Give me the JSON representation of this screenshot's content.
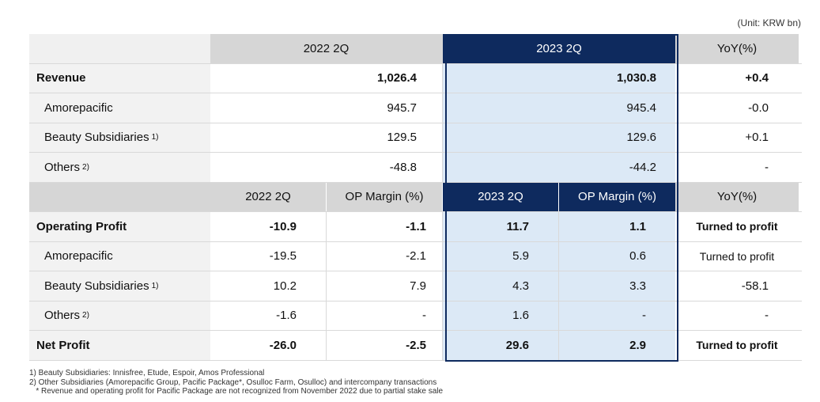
{
  "unit": "(Unit: KRW bn)",
  "revenue_header": {
    "period1": "2022 2Q",
    "period2": "2023 2Q",
    "yoy": "YoY(%)"
  },
  "revenue_rows": [
    {
      "label": "Revenue",
      "sup": "",
      "v2022": "1,026.4",
      "v2023": "1,030.8",
      "yoy": "+0.4",
      "bold": true
    },
    {
      "label": "Amorepacific",
      "sup": "",
      "v2022": "945.7",
      "v2023": "945.4",
      "yoy": "-0.0",
      "bold": false
    },
    {
      "label": "Beauty Subsidiaries",
      "sup": "1)",
      "v2022": "129.5",
      "v2023": "129.6",
      "yoy": "+0.1",
      "bold": false
    },
    {
      "label": "Others",
      "sup": "2)",
      "v2022": "-48.8",
      "v2023": "-44.2",
      "yoy": "-",
      "bold": false
    }
  ],
  "profit_header": {
    "period1": "2022 2Q",
    "margin1": "OP Margin (%)",
    "period2": "2023 2Q",
    "margin2": "OP Margin (%)",
    "yoy": "YoY(%)"
  },
  "profit_rows": [
    {
      "label": "Operating Profit",
      "sup": "",
      "v2022": "-10.9",
      "m2022": "-1.1",
      "v2023": "11.7",
      "m2023": "1.1",
      "yoy": "Turned to profit",
      "bold": true
    },
    {
      "label": "Amorepacific",
      "sup": "",
      "v2022": "-19.5",
      "m2022": "-2.1",
      "v2023": "5.9",
      "m2023": "0.6",
      "yoy": "Turned to profit",
      "bold": false
    },
    {
      "label": "Beauty Subsidiaries",
      "sup": "1)",
      "v2022": "10.2",
      "m2022": "7.9",
      "v2023": "4.3",
      "m2023": "3.3",
      "yoy": "-58.1",
      "bold": false
    },
    {
      "label": "Others",
      "sup": "2)",
      "v2022": "-1.6",
      "m2022": "-",
      "v2023": "1.6",
      "m2023": "-",
      "yoy": "-",
      "bold": false
    },
    {
      "label": "Net Profit",
      "sup": "",
      "v2022": "-26.0",
      "m2022": "-2.5",
      "v2023": "29.6",
      "m2023": "2.9",
      "yoy": "Turned to profit",
      "bold": true
    }
  ],
  "footnotes": [
    "1)  Beauty Subsidiaries: Innisfree, Etude, Espoir, Amos Professional",
    "2)  Other Subsidiaries (Amorepacific Group, Pacific Package*, Osulloc Farm, Osulloc) and intercompany transactions",
    "   * Revenue and operating profit for Pacific Package are not recognized from November 2022 due to partial stake sale"
  ]
}
